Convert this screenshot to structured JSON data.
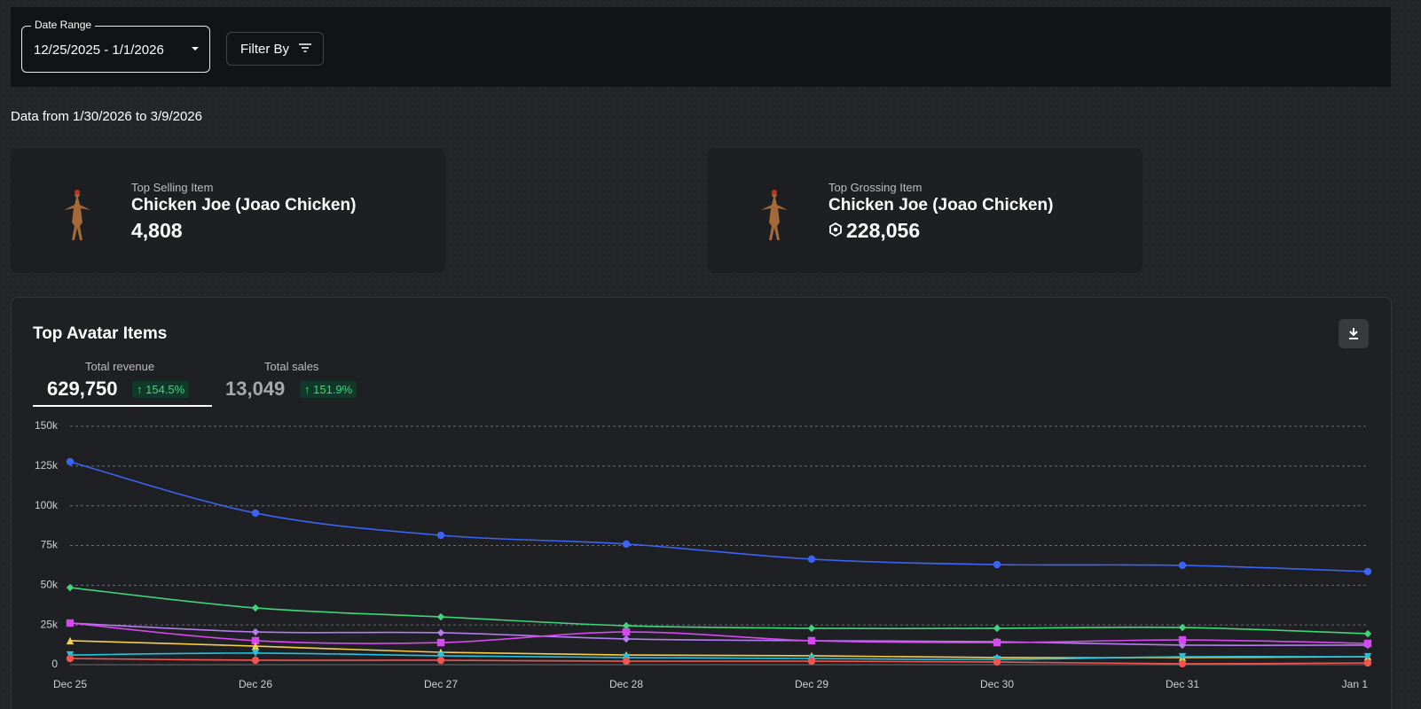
{
  "filters": {
    "date_range_label": "Date Range",
    "date_range": "12/25/2025 - 1/1/2026",
    "filter_button": "Filter By"
  },
  "data_note": "Data from 1/30/2026 to 3/9/2026",
  "cards": [
    {
      "label": "Top Selling Item",
      "name": "Chicken Joe (Joao Chicken)",
      "value": "4,808"
    },
    {
      "label": "Top Grossing Item",
      "name": "Chicken Joe (Joao Chicken)",
      "value": "228,056"
    }
  ],
  "panel": {
    "title": "Top Avatar Items",
    "metrics": [
      {
        "label": "Total revenue",
        "value": "629,750",
        "change": "154.5%"
      },
      {
        "label": "Total sales",
        "value": "13,049",
        "change": "151.9%"
      }
    ]
  },
  "chart_data": {
    "type": "line",
    "categories": [
      "Dec 25",
      "Dec 26",
      "Dec 27",
      "Dec 28",
      "Dec 29",
      "Dec 30",
      "Dec 31",
      "Jan 1"
    ],
    "ylim": [
      0,
      150000
    ],
    "yticks": [
      {
        "value": 0,
        "label": "0"
      },
      {
        "value": 25000,
        "label": "25k"
      },
      {
        "value": 50000,
        "label": "50k"
      },
      {
        "value": 75000,
        "label": "75k"
      },
      {
        "value": 100000,
        "label": "100k"
      },
      {
        "value": 125000,
        "label": "125k"
      },
      {
        "value": 150000,
        "label": "150k"
      }
    ],
    "grid": true,
    "series": [
      {
        "color": "#3d63f5",
        "marker": "circle",
        "values": [
          127700,
          95400,
          81400,
          75900,
          66400,
          63000,
          62500,
          58600
        ]
      },
      {
        "color": "#3fd67a",
        "marker": "diamond",
        "values": [
          48500,
          35700,
          30100,
          24500,
          22900,
          22900,
          23400,
          19500
        ]
      },
      {
        "color": "#b57cf0",
        "marker": "diamond",
        "values": [
          26200,
          20600,
          20100,
          16200,
          15100,
          14500,
          12300,
          12300
        ]
      },
      {
        "color": "#d649f0",
        "marker": "square",
        "values": [
          26200,
          15100,
          13900,
          20600,
          15100,
          13900,
          15600,
          13400
        ]
      },
      {
        "color": "#f5cf4a",
        "marker": "triangle",
        "values": [
          15100,
          11700,
          7800,
          6100,
          5600,
          4500,
          4500,
          5000
        ]
      },
      {
        "color": "#22c3e0",
        "marker": "triangle-down",
        "values": [
          6100,
          7300,
          5600,
          4500,
          3900,
          3300,
          5000,
          5000
        ]
      },
      {
        "color": "#f0554f",
        "marker": "circle",
        "values": [
          3900,
          2800,
          2800,
          2200,
          2200,
          1700,
          600,
          1100
        ]
      }
    ]
  }
}
